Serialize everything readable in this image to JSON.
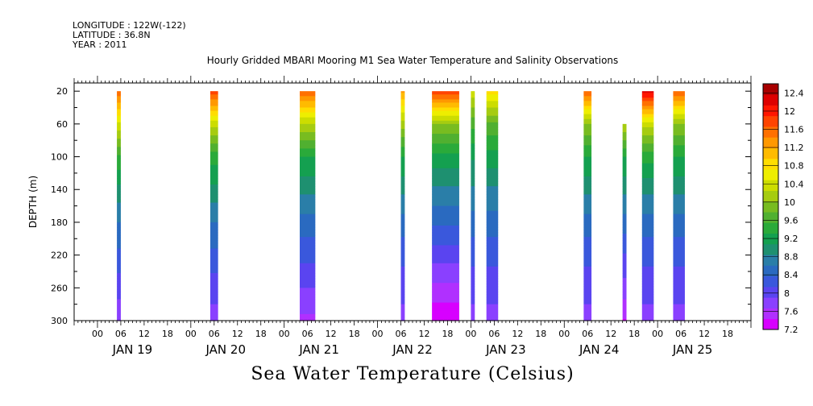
{
  "meta": {
    "longitude": "LONGITUDE : 122W(-122)",
    "latitude": "LATITUDE : 36.8N",
    "year": "YEAR : 2011"
  },
  "chart_data": {
    "type": "heatmap",
    "title": "Hourly Gridded MBARI Mooring M1 Sea Water Temperature and Salinity Observations",
    "subtitle": "Sea Water Temperature (Celsius)",
    "ylabel": "DEPTH (m)",
    "xlabel": "",
    "y_axis_reversed": true,
    "ylim": [
      300,
      10
    ],
    "y_ticks": [
      20,
      60,
      100,
      140,
      180,
      220,
      260,
      300
    ],
    "x_range_hours": [
      -6,
      168
    ],
    "x_hour_ticks": [
      "00",
      "06",
      "12",
      "18",
      "00",
      "06",
      "12",
      "18",
      "00",
      "06",
      "12",
      "18",
      "00",
      "06",
      "12",
      "18",
      "00",
      "06",
      "12",
      "18",
      "00",
      "06",
      "12",
      "18",
      "00",
      "06",
      "12",
      "18"
    ],
    "x_day_labels": [
      "JAN 19",
      "JAN 20",
      "JAN 21",
      "JAN 22",
      "JAN 23",
      "JAN 24",
      "JAN 25"
    ],
    "colorbar": {
      "labels": [
        "12.4",
        "12",
        "11.6",
        "11.2",
        "10.8",
        "10.4",
        "10",
        "9.6",
        "9.2",
        "8.8",
        "8.4",
        "8",
        "7.6",
        "7.2"
      ],
      "min": 7.2,
      "max": 12.6,
      "colors": [
        "#d700ff",
        "#b030ff",
        "#8a40ff",
        "#5a44f0",
        "#3a58dc",
        "#2a6ac0",
        "#2a7ea8",
        "#1e9070",
        "#14a050",
        "#2aaa3a",
        "#50b030",
        "#78bc20",
        "#a6cc10",
        "#ccdd00",
        "#eeee00",
        "#ffdd00",
        "#ffbb00",
        "#ff9800",
        "#ff7000",
        "#ff4400",
        "#ff1600",
        "#dd0000",
        "#a80000"
      ]
    },
    "segments": [
      {
        "start": 5,
        "end": 6,
        "surface": 11.6,
        "bottom": 7.7,
        "v20": 11.6,
        "v60": 10.4,
        "v100": 9.5,
        "v140": 9.0,
        "v180": 8.6,
        "v220": 8.3,
        "v260": 8.0,
        "v300": 7.7
      },
      {
        "start": 29,
        "end": 31,
        "surface": 11.8,
        "bottom": 7.8,
        "v20": 11.8,
        "v60": 10.3,
        "v100": 9.4,
        "v140": 9.0,
        "v180": 8.6,
        "v220": 8.3,
        "v260": 8.0,
        "v300": 7.8
      },
      {
        "start": 52,
        "end": 56,
        "surface": 11.6,
        "bottom": 7.6,
        "v20": 11.6,
        "v60": 10.2,
        "v100": 9.3,
        "v140": 8.9,
        "v180": 8.5,
        "v220": 8.2,
        "v260": 7.9,
        "v300": 7.6
      },
      {
        "start": 78,
        "end": 79,
        "surface": 11.2,
        "bottom": 7.8,
        "v20": 11.2,
        "v60": 10.1,
        "v100": 9.3,
        "v140": 8.9,
        "v180": 8.5,
        "v220": 8.2,
        "v260": 8.0,
        "v300": 7.8
      },
      {
        "start": 86,
        "end": 93,
        "surface": 11.8,
        "bottom": 7.2,
        "v20": 11.8,
        "v60": 10.0,
        "v100": 9.2,
        "v140": 8.8,
        "v180": 8.4,
        "v220": 8.0,
        "v260": 7.6,
        "v300": 7.2
      },
      {
        "start": 96,
        "end": 97,
        "surface": 10.4,
        "bottom": 7.8,
        "v20": 10.4,
        "v60": 9.6,
        "v100": 9.1,
        "v140": 8.8,
        "v180": 8.5,
        "v220": 8.2,
        "v260": 8.0,
        "v300": 7.8
      },
      {
        "start": 100,
        "end": 103,
        "surface": 10.8,
        "bottom": 7.8,
        "v20": 10.8,
        "v60": 9.7,
        "v100": 9.2,
        "v140": 8.8,
        "v180": 8.5,
        "v220": 8.2,
        "v260": 8.0,
        "v300": 7.8
      },
      {
        "start": 125,
        "end": 127,
        "surface": 11.6,
        "bottom": 7.8,
        "v20": 11.6,
        "v60": 10.0,
        "v100": 9.3,
        "v140": 8.9,
        "v180": 8.5,
        "v220": 8.2,
        "v260": 8.0,
        "v300": 7.8
      },
      {
        "start": 135,
        "end": 136,
        "surface": 10.2,
        "bottom": 7.4,
        "v20": null,
        "v60": 10.2,
        "v100": 9.3,
        "v140": 8.9,
        "v180": 8.5,
        "v220": 8.1,
        "v260": 7.8,
        "v300": 7.4
      },
      {
        "start": 140,
        "end": 143,
        "surface": 12.2,
        "bottom": 7.8,
        "v20": 12.2,
        "v60": 10.3,
        "v100": 9.4,
        "v140": 8.9,
        "v180": 8.5,
        "v220": 8.2,
        "v260": 8.0,
        "v300": 7.8
      },
      {
        "start": 148,
        "end": 151,
        "surface": 11.6,
        "bottom": 7.8,
        "v20": 11.6,
        "v60": 10.0,
        "v100": 9.3,
        "v140": 8.9,
        "v180": 8.5,
        "v220": 8.2,
        "v260": 8.0,
        "v300": 7.8
      }
    ]
  }
}
